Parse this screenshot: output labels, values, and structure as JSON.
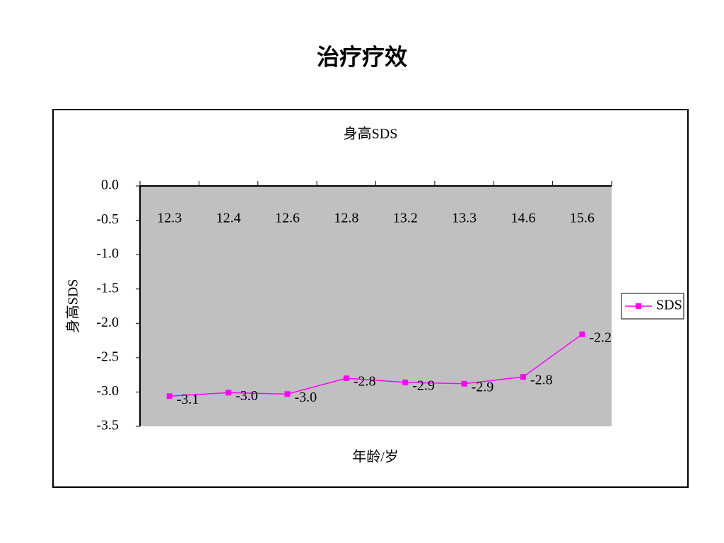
{
  "page_title": "治疗疗效",
  "chart_data": {
    "type": "line",
    "title": "身高SDS",
    "x_label": "年龄/岁",
    "y_label": "身高SDS",
    "categories": [
      "12.3",
      "12.4",
      "12.6",
      "12.8",
      "13.2",
      "13.3",
      "14.6",
      "15.6"
    ],
    "series": [
      {
        "name": "SDS",
        "color": "#ff00ff",
        "values": [
          -3.06,
          -3.01,
          -3.03,
          -2.8,
          -2.86,
          -2.88,
          -2.78,
          -2.16
        ],
        "value_labels": [
          "-3.1",
          "-3.0",
          "-3.0",
          "-2.8",
          "-2.9",
          "-2.9",
          "-2.8",
          "-2.2"
        ]
      }
    ],
    "ylim": [
      -3.5,
      0
    ],
    "yticks": [
      {
        "value": 0,
        "label": "0.0"
      },
      {
        "value": -0.5,
        "label": "-0.5"
      },
      {
        "value": -1,
        "label": "-1.0"
      },
      {
        "value": -1.5,
        "label": "-1.5"
      },
      {
        "value": -2,
        "label": "-2.0"
      },
      {
        "value": -2.5,
        "label": "-2.5"
      },
      {
        "value": -3,
        "label": "-3.0"
      },
      {
        "value": -3.5,
        "label": "-3.5"
      }
    ],
    "plot_background": "#c0c0c0",
    "legend": "right"
  }
}
